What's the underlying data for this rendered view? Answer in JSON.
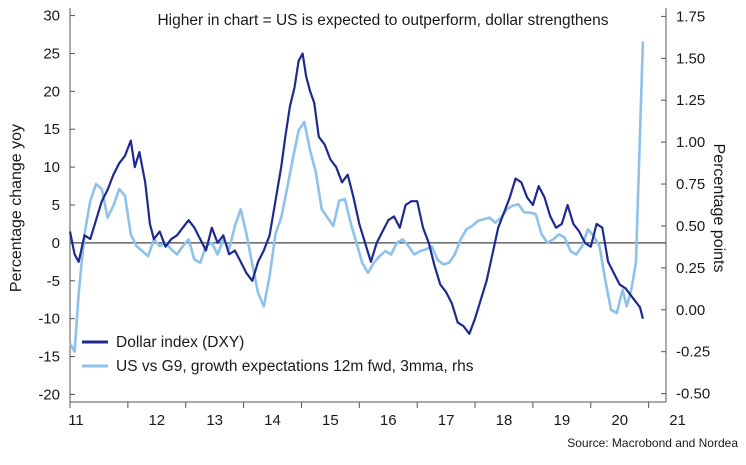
{
  "chart_data": {
    "type": "line",
    "annotation": "Higher in chart = US is expected to outperform, dollar strengthens",
    "ylabel_left": "Percentage change yoy",
    "ylabel_right": "Percentage points",
    "source": "Source: Macrobond and Nordea",
    "x_ticks": [
      "11",
      "12",
      "13",
      "14",
      "15",
      "16",
      "17",
      "18",
      "19",
      "20",
      "21"
    ],
    "y_left_ticks": [
      "30",
      "25",
      "20",
      "15",
      "10",
      "5",
      "0",
      "-5",
      "-10",
      "-15",
      "-20"
    ],
    "y_right_ticks": [
      "1.75",
      "1.50",
      "1.25",
      "1.00",
      "0.75",
      "0.50",
      "0.25",
      "0.00",
      "-0.25",
      "-0.50"
    ],
    "ylim_left": [
      -21,
      31
    ],
    "ylim_right": [
      -0.55,
      1.8
    ],
    "xlim": [
      2011.0,
      2021.3
    ],
    "grid": false,
    "legend": "bottom-left",
    "colors": {
      "dxy": "#1f2a8f",
      "growth": "#8ec2ea",
      "zero_line": "#444444"
    },
    "series": [
      {
        "name": "Dollar index (DXY)",
        "axis": "left",
        "x": [
          2011.0,
          2011.08,
          2011.15,
          2011.25,
          2011.35,
          2011.45,
          2011.55,
          2011.65,
          2011.75,
          2011.85,
          2011.95,
          2012.05,
          2012.12,
          2012.2,
          2012.3,
          2012.38,
          2012.45,
          2012.55,
          2012.65,
          2012.75,
          2012.85,
          2012.95,
          2013.05,
          2013.15,
          2013.25,
          2013.35,
          2013.45,
          2013.55,
          2013.65,
          2013.75,
          2013.85,
          2013.95,
          2014.05,
          2014.15,
          2014.25,
          2014.35,
          2014.45,
          2014.55,
          2014.65,
          2014.72,
          2014.8,
          2014.88,
          2014.95,
          2015.02,
          2015.08,
          2015.15,
          2015.22,
          2015.3,
          2015.4,
          2015.5,
          2015.6,
          2015.7,
          2015.8,
          2015.9,
          2016.0,
          2016.1,
          2016.2,
          2016.3,
          2016.4,
          2016.5,
          2016.6,
          2016.7,
          2016.8,
          2016.9,
          2017.0,
          2017.1,
          2017.2,
          2017.3,
          2017.4,
          2017.5,
          2017.6,
          2017.7,
          2017.8,
          2017.9,
          2018.0,
          2018.1,
          2018.2,
          2018.3,
          2018.4,
          2018.5,
          2018.6,
          2018.7,
          2018.8,
          2018.9,
          2019.0,
          2019.1,
          2019.2,
          2019.3,
          2019.4,
          2019.5,
          2019.6,
          2019.7,
          2019.8,
          2019.9,
          2020.0,
          2020.1,
          2020.2,
          2020.3,
          2020.4,
          2020.5,
          2020.6,
          2020.7,
          2020.8,
          2020.85,
          2020.9
        ],
        "values": [
          1.5,
          -1.5,
          -2.5,
          1.0,
          0.5,
          3.0,
          5.5,
          7.0,
          9.0,
          10.5,
          11.5,
          13.5,
          10.0,
          12.0,
          8.0,
          2.5,
          0.5,
          1.5,
          -0.5,
          0.5,
          1.0,
          2.0,
          3.0,
          2.0,
          0.5,
          -1.0,
          2.0,
          0.0,
          1.0,
          -1.5,
          -1.0,
          -2.5,
          -4.0,
          -5.0,
          -2.5,
          -1.0,
          1.0,
          5.5,
          10.0,
          14.0,
          18.0,
          20.5,
          24.0,
          25.0,
          22.0,
          20.0,
          18.5,
          14.0,
          13.0,
          11.0,
          10.0,
          8.0,
          9.0,
          6.0,
          2.5,
          0.0,
          -2.5,
          0.0,
          1.5,
          3.0,
          3.5,
          2.0,
          5.0,
          5.5,
          5.5,
          2.0,
          0.0,
          -3.0,
          -5.5,
          -6.5,
          -8.0,
          -10.5,
          -11.0,
          -12.0,
          -10.0,
          -7.5,
          -5.0,
          -1.5,
          2.0,
          4.0,
          6.0,
          8.5,
          8.0,
          6.0,
          5.0,
          7.5,
          6.0,
          3.5,
          2.0,
          2.5,
          5.0,
          2.5,
          1.5,
          0.0,
          -0.5,
          2.5,
          2.0,
          -2.5,
          -4.0,
          -5.5,
          -6.0,
          -7.0,
          -8.0,
          -8.5,
          -10.0
        ]
      },
      {
        "name": "US vs G9, growth expectations 12m fwd, 3mma, rhs",
        "axis": "right",
        "x": [
          2011.0,
          2011.08,
          2011.15,
          2011.25,
          2011.35,
          2011.45,
          2011.55,
          2011.65,
          2011.75,
          2011.85,
          2011.95,
          2012.05,
          2012.15,
          2012.25,
          2012.35,
          2012.45,
          2012.55,
          2012.65,
          2012.75,
          2012.85,
          2012.95,
          2013.05,
          2013.15,
          2013.25,
          2013.35,
          2013.45,
          2013.55,
          2013.65,
          2013.75,
          2013.85,
          2013.95,
          2014.05,
          2014.15,
          2014.25,
          2014.35,
          2014.45,
          2014.55,
          2014.65,
          2014.75,
          2014.85,
          2014.95,
          2015.05,
          2015.15,
          2015.25,
          2015.35,
          2015.45,
          2015.55,
          2015.65,
          2015.75,
          2015.85,
          2015.95,
          2016.05,
          2016.15,
          2016.25,
          2016.35,
          2016.45,
          2016.55,
          2016.65,
          2016.75,
          2016.85,
          2016.95,
          2017.05,
          2017.15,
          2017.25,
          2017.35,
          2017.45,
          2017.55,
          2017.65,
          2017.75,
          2017.85,
          2017.95,
          2018.05,
          2018.15,
          2018.25,
          2018.35,
          2018.45,
          2018.55,
          2018.65,
          2018.75,
          2018.85,
          2018.95,
          2019.05,
          2019.15,
          2019.25,
          2019.35,
          2019.45,
          2019.55,
          2019.65,
          2019.75,
          2019.85,
          2019.95,
          2020.05,
          2020.15,
          2020.25,
          2020.35,
          2020.45,
          2020.55,
          2020.62,
          2020.7,
          2020.78,
          2020.85,
          2020.9
        ],
        "values": [
          -0.2,
          -0.25,
          0.1,
          0.45,
          0.65,
          0.75,
          0.72,
          0.55,
          0.62,
          0.72,
          0.68,
          0.45,
          0.38,
          0.35,
          0.32,
          0.42,
          0.38,
          0.4,
          0.36,
          0.33,
          0.38,
          0.42,
          0.3,
          0.28,
          0.38,
          0.4,
          0.33,
          0.42,
          0.36,
          0.5,
          0.6,
          0.45,
          0.27,
          0.1,
          0.02,
          0.2,
          0.45,
          0.55,
          0.72,
          0.9,
          1.07,
          1.12,
          0.95,
          0.82,
          0.6,
          0.55,
          0.5,
          0.65,
          0.66,
          0.52,
          0.4,
          0.28,
          0.22,
          0.28,
          0.32,
          0.35,
          0.33,
          0.4,
          0.42,
          0.38,
          0.33,
          0.35,
          0.36,
          0.38,
          0.3,
          0.27,
          0.28,
          0.33,
          0.42,
          0.48,
          0.5,
          0.53,
          0.54,
          0.55,
          0.52,
          0.55,
          0.6,
          0.62,
          0.63,
          0.58,
          0.58,
          0.57,
          0.45,
          0.4,
          0.42,
          0.45,
          0.43,
          0.35,
          0.33,
          0.38,
          0.48,
          0.44,
          0.38,
          0.18,
          0.0,
          -0.02,
          0.12,
          0.02,
          0.12,
          0.28,
          1.05,
          1.6
        ]
      }
    ]
  }
}
